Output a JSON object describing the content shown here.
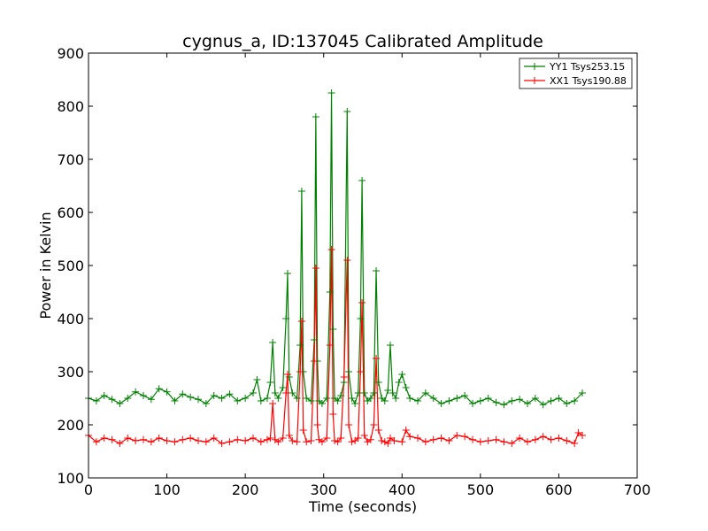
{
  "chart_data": {
    "type": "line",
    "title": "cygnus_a, ID:137045 Calibrated Amplitude",
    "xlabel": "Time (seconds)",
    "ylabel": "Power in Kelvin",
    "xlim": [
      0,
      700
    ],
    "ylim": [
      100,
      900
    ],
    "xticks": [
      0,
      100,
      200,
      300,
      400,
      500,
      600,
      700
    ],
    "yticks": [
      100,
      200,
      300,
      400,
      500,
      600,
      700,
      800,
      900
    ],
    "grid": false,
    "legend_position": "top-right",
    "marker": "+",
    "series": [
      {
        "name": "YY1 Tsys253.15",
        "color": "#008000",
        "x": [
          0,
          10,
          20,
          30,
          40,
          50,
          60,
          70,
          80,
          90,
          100,
          110,
          120,
          130,
          140,
          150,
          160,
          170,
          180,
          190,
          200,
          210,
          215,
          220,
          228,
          232,
          235,
          238,
          242,
          248,
          252,
          254,
          256,
          260,
          266,
          270,
          272,
          274,
          278,
          284,
          288,
          290,
          292,
          294,
          298,
          304,
          308,
          310,
          312,
          314,
          318,
          322,
          326,
          330,
          332,
          336,
          340,
          344,
          347,
          349,
          352,
          356,
          360,
          364,
          367,
          370,
          374,
          378,
          382,
          385,
          388,
          392,
          396,
          400,
          405,
          410,
          420,
          430,
          440,
          450,
          460,
          470,
          480,
          490,
          500,
          510,
          520,
          530,
          540,
          550,
          560,
          570,
          580,
          590,
          600,
          610,
          620,
          630
        ],
        "y": [
          250,
          245,
          255,
          248,
          240,
          250,
          262,
          255,
          248,
          268,
          262,
          245,
          258,
          252,
          248,
          240,
          255,
          250,
          258,
          245,
          250,
          260,
          285,
          245,
          250,
          280,
          355,
          260,
          250,
          270,
          400,
          485,
          290,
          260,
          250,
          350,
          640,
          300,
          250,
          245,
          360,
          780,
          320,
          245,
          240,
          250,
          450,
          825,
          380,
          250,
          245,
          255,
          280,
          790,
          300,
          250,
          240,
          260,
          400,
          660,
          260,
          245,
          250,
          260,
          490,
          280,
          250,
          245,
          265,
          350,
          260,
          250,
          280,
          295,
          270,
          250,
          245,
          260,
          250,
          240,
          245,
          250,
          255,
          240,
          245,
          250,
          242,
          238,
          245,
          248,
          240,
          250,
          238,
          245,
          250,
          240,
          245,
          260
        ]
      },
      {
        "name": "XX1 Tsys190.88",
        "color": "#ff0000",
        "x": [
          0,
          10,
          20,
          30,
          40,
          50,
          60,
          70,
          80,
          90,
          100,
          110,
          120,
          130,
          140,
          150,
          160,
          170,
          180,
          190,
          200,
          210,
          220,
          228,
          232,
          235,
          238,
          242,
          248,
          252,
          254,
          256,
          260,
          266,
          270,
          272,
          274,
          278,
          284,
          288,
          290,
          292,
          294,
          298,
          304,
          308,
          310,
          312,
          314,
          318,
          322,
          326,
          330,
          332,
          336,
          340,
          344,
          347,
          349,
          352,
          356,
          360,
          364,
          367,
          370,
          374,
          378,
          382,
          385,
          390,
          400,
          405,
          410,
          420,
          430,
          440,
          450,
          460,
          470,
          480,
          490,
          500,
          510,
          520,
          530,
          540,
          550,
          560,
          570,
          580,
          590,
          600,
          610,
          620,
          625,
          630
        ],
        "y": [
          180,
          168,
          175,
          172,
          165,
          175,
          170,
          172,
          168,
          175,
          170,
          168,
          172,
          175,
          170,
          168,
          175,
          165,
          168,
          172,
          170,
          175,
          168,
          172,
          175,
          240,
          172,
          168,
          175,
          260,
          295,
          180,
          170,
          168,
          300,
          395,
          190,
          168,
          170,
          320,
          495,
          200,
          172,
          168,
          175,
          350,
          530,
          220,
          170,
          168,
          175,
          290,
          510,
          200,
          168,
          170,
          175,
          300,
          430,
          180,
          168,
          172,
          200,
          325,
          190,
          170,
          168,
          165,
          175,
          170,
          168,
          190,
          178,
          175,
          168,
          172,
          175,
          170,
          180,
          178,
          172,
          168,
          170,
          172,
          168,
          165,
          175,
          168,
          172,
          178,
          172,
          175,
          170,
          165,
          185,
          180
        ]
      }
    ]
  }
}
